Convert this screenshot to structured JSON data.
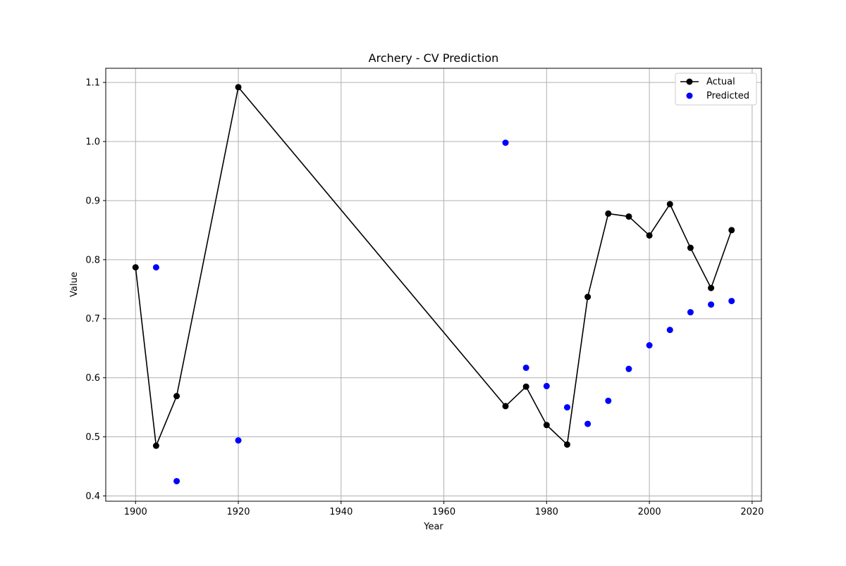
{
  "chart_data": {
    "type": "line",
    "title": "Archery - CV Prediction",
    "xlabel": "Year",
    "ylabel": "Value",
    "xlim": [
      1894.2,
      2021.8
    ],
    "ylim": [
      0.391,
      1.124
    ],
    "xticks": [
      1900,
      1920,
      1940,
      1960,
      1980,
      2000,
      2020
    ],
    "yticks": [
      0.4,
      0.5,
      0.6,
      0.7,
      0.8,
      0.9,
      1.0,
      1.1
    ],
    "grid": true,
    "legend_position": "top-right",
    "series": [
      {
        "name": "Actual",
        "style": "line-with-markers",
        "color": "#000000",
        "x": [
          1900,
          1904,
          1908,
          1920,
          1972,
          1976,
          1980,
          1984,
          1988,
          1992,
          1996,
          2000,
          2004,
          2008,
          2012,
          2016
        ],
        "y": [
          0.787,
          0.485,
          0.569,
          1.092,
          0.552,
          0.585,
          0.52,
          0.487,
          0.737,
          0.878,
          0.873,
          0.841,
          0.894,
          0.82,
          0.752,
          0.85
        ]
      },
      {
        "name": "Predicted",
        "style": "scatter",
        "color": "#0000ff",
        "x": [
          1904,
          1908,
          1920,
          1972,
          1976,
          1980,
          1984,
          1988,
          1992,
          1996,
          2000,
          2004,
          2008,
          2012,
          2016
        ],
        "y": [
          0.787,
          0.425,
          0.494,
          0.998,
          0.617,
          0.586,
          0.55,
          0.522,
          0.561,
          0.615,
          0.655,
          0.681,
          0.711,
          0.724,
          0.73
        ]
      }
    ]
  }
}
